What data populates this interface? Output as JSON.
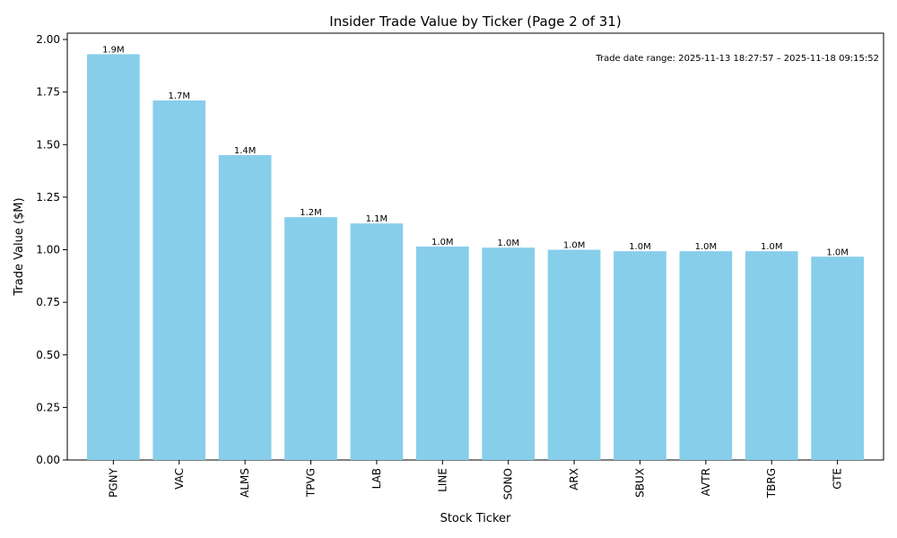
{
  "chart_data": {
    "type": "bar",
    "title": "Insider Trade Value by Ticker (Page 2 of 31)",
    "xlabel": "Stock Ticker",
    "ylabel": "Trade Value ($M)",
    "categories": [
      "PGNY",
      "VAC",
      "ALMS",
      "TPVG",
      "LAB",
      "LINE",
      "SONO",
      "ARX",
      "SBUX",
      "AVTR",
      "TBRG",
      "GTE"
    ],
    "values": [
      1.93,
      1.71,
      1.45,
      1.155,
      1.125,
      1.015,
      1.01,
      1.0,
      0.993,
      0.993,
      0.993,
      0.967
    ],
    "data_labels": [
      "1.9M",
      "1.7M",
      "1.4M",
      "1.2M",
      "1.1M",
      "1.0M",
      "1.0M",
      "1.0M",
      "1.0M",
      "1.0M",
      "1.0M",
      "1.0M"
    ],
    "ylim": [
      0,
      2.03
    ],
    "yticks": [
      0.0,
      0.25,
      0.5,
      0.75,
      1.0,
      1.25,
      1.5,
      1.75,
      2.0
    ],
    "ytick_labels": [
      "0.00",
      "0.25",
      "0.50",
      "0.75",
      "1.00",
      "1.25",
      "1.50",
      "1.75",
      "2.00"
    ],
    "annotation": "Trade date range: 2025-11-13 18:27:57 – 2025-11-18 09:15:52",
    "legend": "none",
    "grid": false,
    "bar_color": "#87ceeb"
  }
}
